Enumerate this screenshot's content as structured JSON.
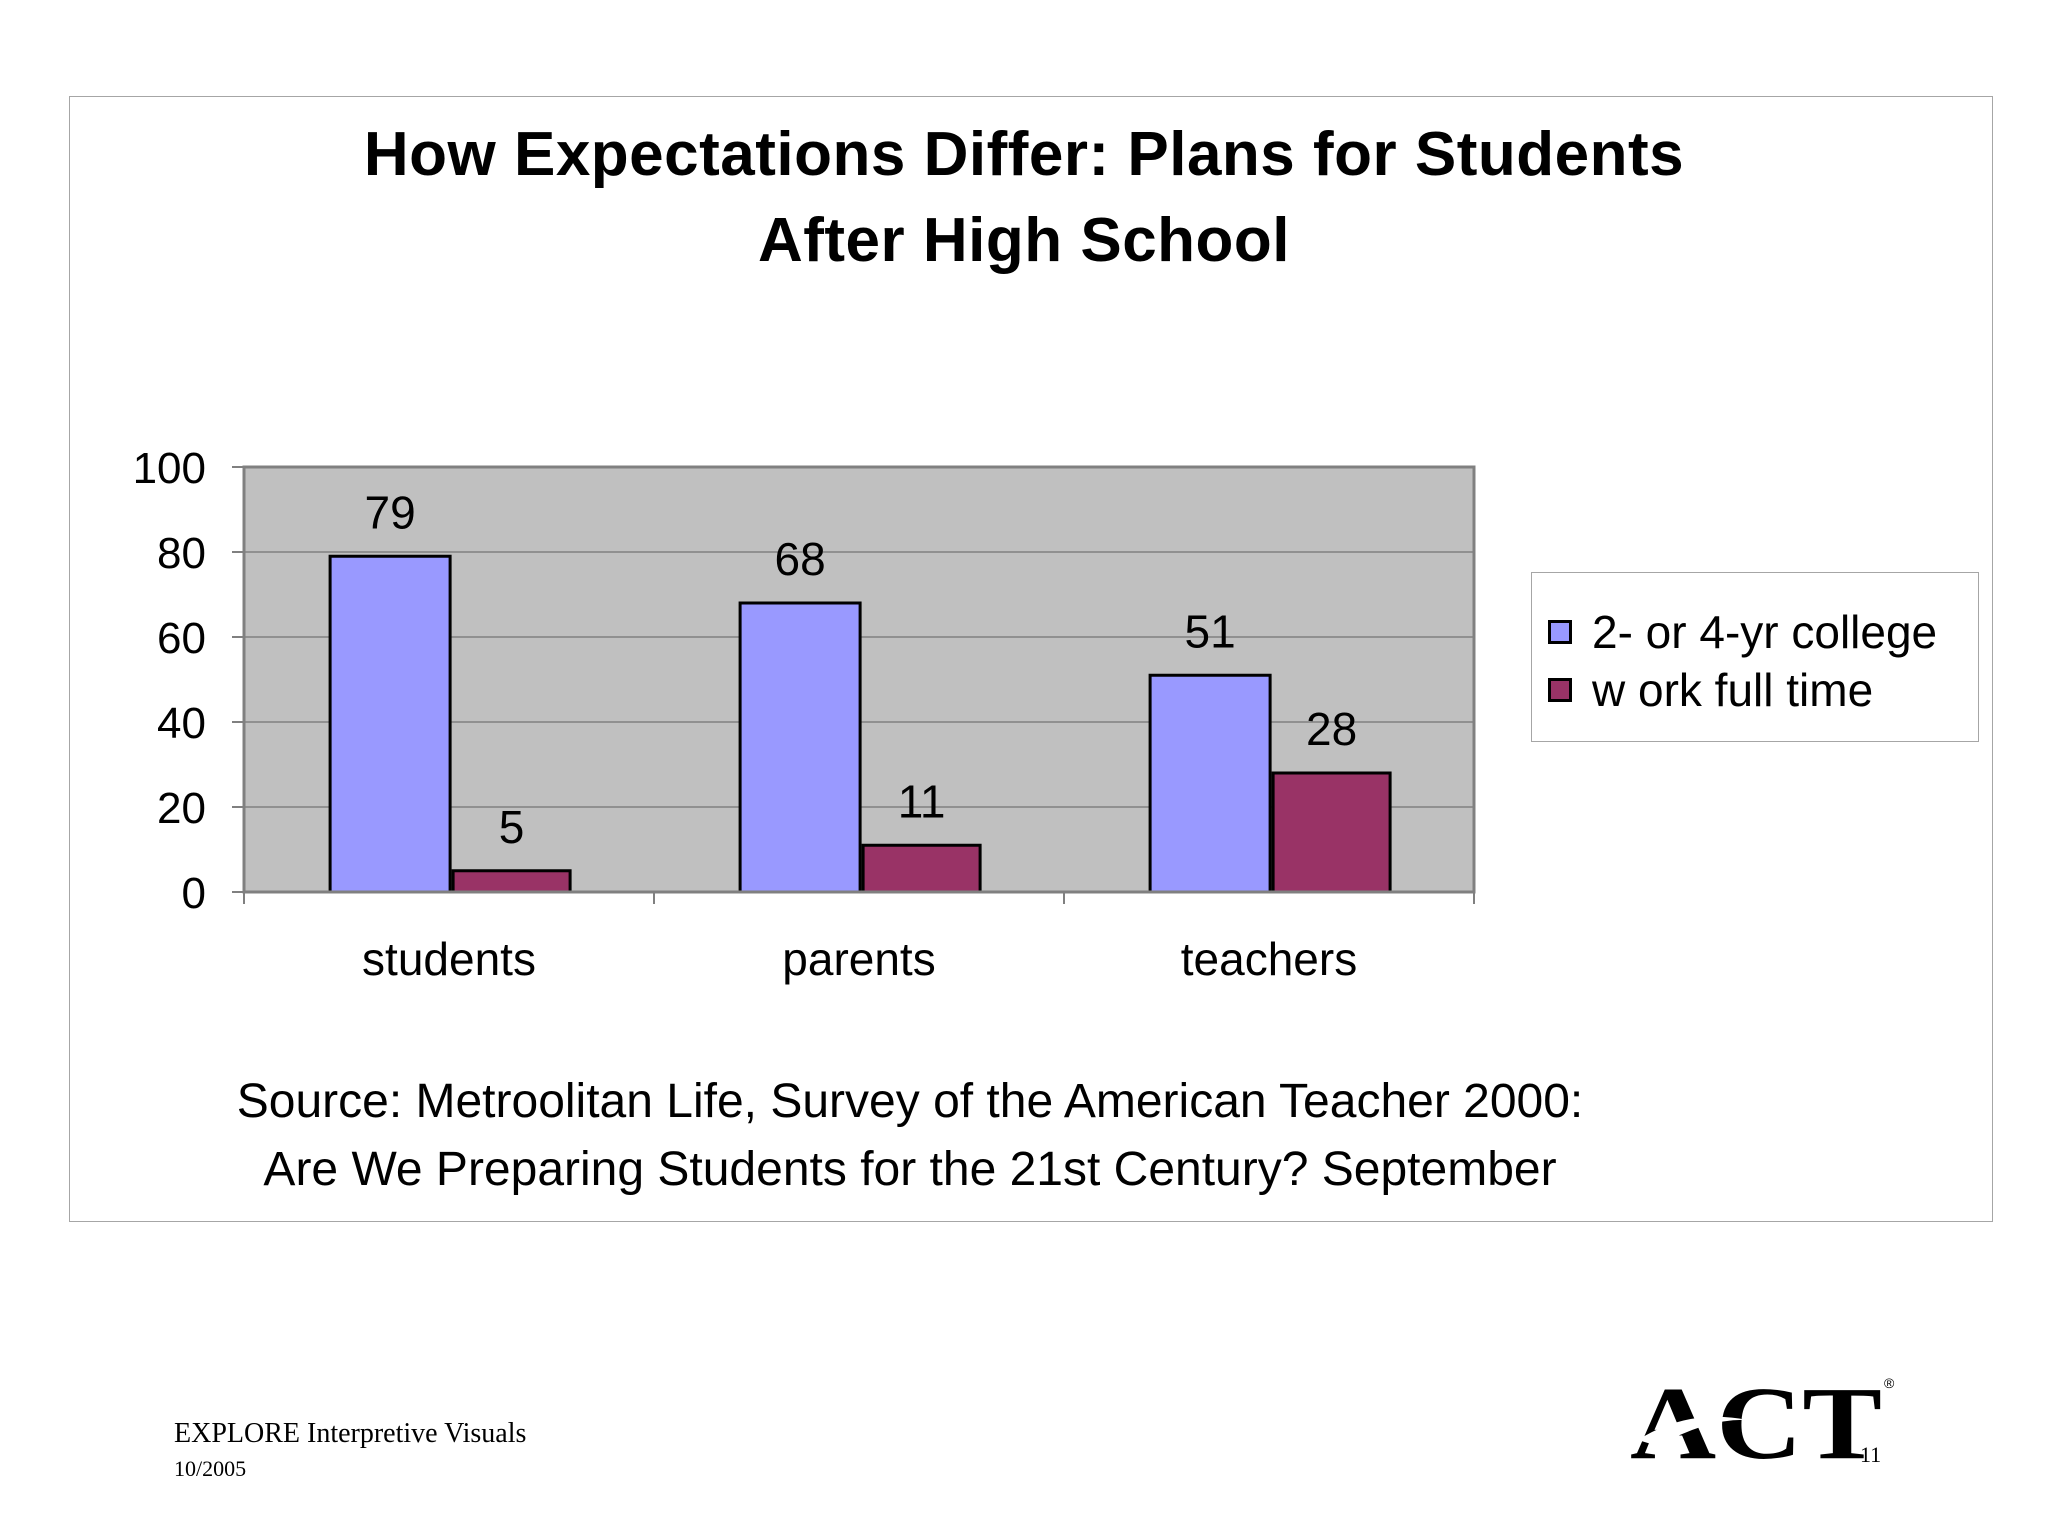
{
  "chart_data": {
    "type": "bar",
    "title_lines": [
      "How Expectations Differ:  Plans for Students",
      "After High School"
    ],
    "categories": [
      "students",
      "parents",
      "teachers"
    ],
    "series": [
      {
        "name": "2- or 4-yr college",
        "values": [
          79,
          68,
          51
        ],
        "color": "#9999ff"
      },
      {
        "name": "w ork full time",
        "values": [
          5,
          11,
          28
        ],
        "color": "#993366"
      }
    ],
    "yticks": [
      "0",
      "20",
      "40",
      "60",
      "80",
      "100"
    ],
    "ylim": [
      0,
      100
    ],
    "grid": true,
    "legend_position": "right",
    "plot_background": "#c0c0c0"
  },
  "source": {
    "line1": "Source:  Metroolitan Life, Survey of the American Teacher 2000:",
    "line2": "Are We Preparing Students for the 21st Century?  September"
  },
  "footer": {
    "title": "EXPLORE Interpretive Visuals",
    "date": "10/2005",
    "logo_text": "ACT",
    "logo_mark": "®",
    "page_number": "11"
  }
}
